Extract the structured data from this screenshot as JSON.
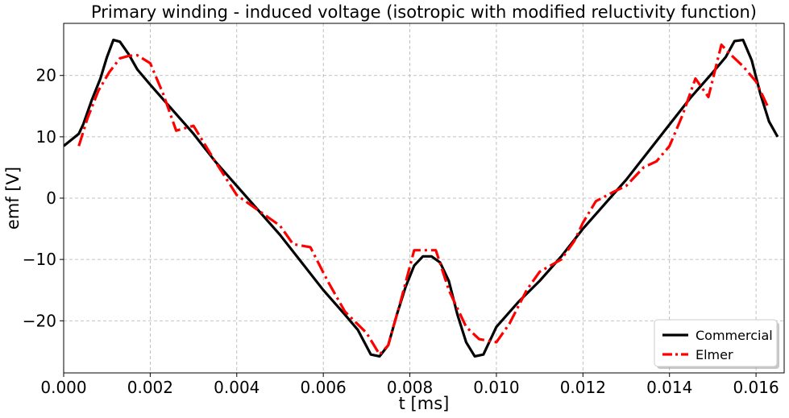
{
  "chart_data": {
    "type": "line",
    "title": "Primary winding - induced voltage (isotropic with modified reluctivity function)",
    "xlabel": "t [ms]",
    "ylabel": "emf [V]",
    "xlim": [
      0,
      0.01665
    ],
    "ylim": [
      -28.5,
      28.5
    ],
    "xticks": [
      0,
      0.002,
      0.004,
      0.006,
      0.008,
      0.01,
      0.012,
      0.014,
      0.016
    ],
    "xtick_labels": [
      "0.000",
      "0.002",
      "0.004",
      "0.006",
      "0.008",
      "0.010",
      "0.012",
      "0.014",
      "0.016"
    ],
    "yticks": [
      -20,
      -10,
      0,
      10,
      20
    ],
    "ytick_labels": [
      "−20",
      "−10",
      "0",
      "10",
      "20"
    ],
    "grid": true,
    "legend_position": "bottom-right",
    "series": [
      {
        "name": "Commercial",
        "color": "#000000",
        "style": "solid",
        "x": [
          0.0,
          0.00035,
          0.00045,
          0.00065,
          0.00085,
          0.001,
          0.00115,
          0.0013,
          0.0015,
          0.0017,
          0.002,
          0.0025,
          0.003,
          0.0035,
          0.004,
          0.0045,
          0.005,
          0.0055,
          0.006,
          0.0065,
          0.0068,
          0.0071,
          0.0073,
          0.0075,
          0.0077,
          0.0079,
          0.0081,
          0.0083,
          0.0085,
          0.0087,
          0.0089,
          0.0091,
          0.0093,
          0.0095,
          0.0097,
          0.01,
          0.0105,
          0.011,
          0.0115,
          0.012,
          0.0125,
          0.013,
          0.0135,
          0.014,
          0.0145,
          0.015,
          0.0153,
          0.0155,
          0.0157,
          0.0159,
          0.0161,
          0.0163,
          0.0165
        ],
        "y": [
          8.5,
          10.5,
          12.0,
          16.0,
          19.5,
          23.0,
          25.8,
          25.5,
          23.5,
          21.0,
          18.5,
          14.5,
          10.5,
          6.0,
          2.0,
          -2.0,
          -6.0,
          -10.5,
          -15.0,
          -19.0,
          -21.5,
          -25.5,
          -25.8,
          -24.0,
          -19.0,
          -14.5,
          -11.0,
          -9.5,
          -9.5,
          -10.5,
          -13.5,
          -19.0,
          -23.5,
          -25.8,
          -25.5,
          -21.0,
          -17.0,
          -13.5,
          -9.5,
          -5.0,
          -1.0,
          3.0,
          7.5,
          12.0,
          16.5,
          20.5,
          23.0,
          25.6,
          25.8,
          22.5,
          17.0,
          12.5,
          10.0
        ]
      },
      {
        "name": "Elmer",
        "color": "#ff0000",
        "style": "dashdot",
        "x": [
          0.00035,
          0.00055,
          0.0008,
          0.00105,
          0.0013,
          0.0015,
          0.0017,
          0.002,
          0.0023,
          0.0026,
          0.003,
          0.0035,
          0.004,
          0.0045,
          0.005,
          0.0053,
          0.0057,
          0.0061,
          0.0065,
          0.007,
          0.0073,
          0.0075,
          0.0078,
          0.0081,
          0.0083,
          0.0086,
          0.0089,
          0.0093,
          0.0096,
          0.01,
          0.0103,
          0.0107,
          0.011,
          0.0115,
          0.0118,
          0.012,
          0.0123,
          0.0127,
          0.013,
          0.0134,
          0.0137,
          0.014,
          0.0143,
          0.0146,
          0.0149,
          0.0152,
          0.0154,
          0.0157,
          0.016,
          0.0163
        ],
        "y": [
          8.5,
          13.0,
          17.5,
          20.5,
          22.8,
          23.2,
          23.3,
          22.0,
          17.0,
          11.0,
          11.8,
          6.0,
          0.5,
          -2.0,
          -4.5,
          -7.5,
          -8.0,
          -13.5,
          -18.5,
          -22.0,
          -25.5,
          -24.0,
          -16.5,
          -8.5,
          -8.5,
          -8.5,
          -15.0,
          -21.0,
          -23.0,
          -23.5,
          -20.5,
          -15.0,
          -12.0,
          -10.0,
          -7.0,
          -4.0,
          -0.5,
          1.0,
          2.0,
          5.0,
          6.0,
          8.5,
          13.5,
          19.5,
          16.5,
          25.0,
          23.5,
          21.5,
          19.0,
          14.5
        ]
      }
    ]
  }
}
